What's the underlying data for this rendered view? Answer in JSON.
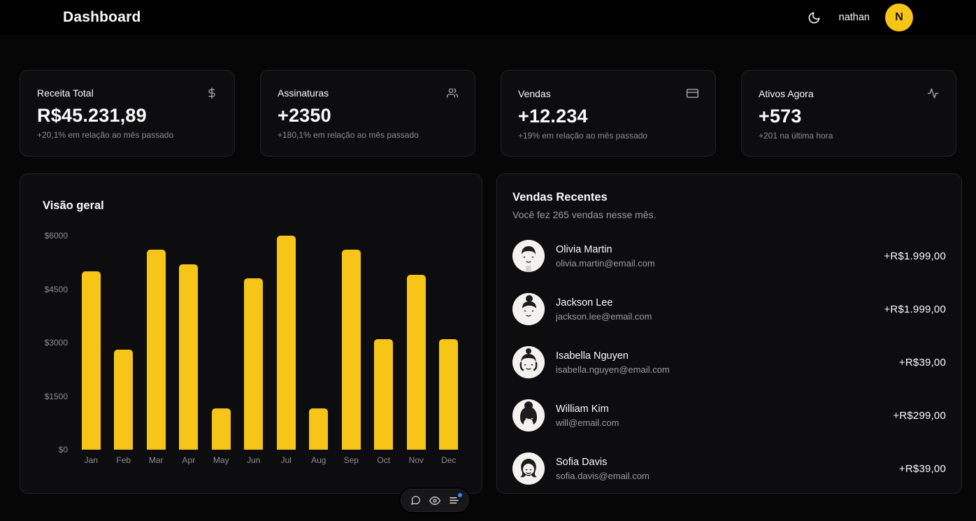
{
  "header": {
    "title": "Dashboard",
    "user_name": "nathan",
    "avatar_initial": "N",
    "icons": [
      "moon-icon",
      "avatar"
    ]
  },
  "stats": [
    {
      "title": "Receita Total",
      "icon": "dollar-icon",
      "value": "R$45.231,89",
      "note": "+20,1% em relação ao mês passado"
    },
    {
      "title": "Assinaturas",
      "icon": "users-icon",
      "value": "+2350",
      "note": "+180,1% em relação ao mês passado"
    },
    {
      "title": "Vendas",
      "icon": "credit-card-icon",
      "value": "+12.234",
      "note": "+19% em relação ao mês passado"
    },
    {
      "title": "Ativos Agora",
      "icon": "activity-icon",
      "value": "+573",
      "note": "+201 na última hora"
    }
  ],
  "chart_card": {
    "title": "Visão geral"
  },
  "chart_data": {
    "type": "bar",
    "title": "Visão geral",
    "categories": [
      "Jan",
      "Feb",
      "Mar",
      "Apr",
      "May",
      "Jun",
      "Jul",
      "Aug",
      "Sep",
      "Oct",
      "Nov",
      "Dec"
    ],
    "values": [
      5000,
      2800,
      5600,
      5200,
      1150,
      4800,
      6000,
      1150,
      5600,
      3100,
      4900,
      3100
    ],
    "xlabel": "",
    "ylabel": "",
    "ylim": [
      0,
      6000
    ],
    "yticks": [
      "$6000",
      "$4500",
      "$3000",
      "$1500",
      "$0"
    ],
    "bar_color": "#f6c517",
    "grid": false,
    "legend": false
  },
  "sales": {
    "title": "Vendas Recentes",
    "subtitle": "Você fez 265 vendas nesse mês.",
    "items": [
      {
        "name": "Olivia Martin",
        "email": "olivia.martin@email.com",
        "amount": "+R$1.999,00"
      },
      {
        "name": "Jackson Lee",
        "email": "jackson.lee@email.com",
        "amount": "+R$1.999,00"
      },
      {
        "name": "Isabella Nguyen",
        "email": "isabella.nguyen@email.com",
        "amount": "+R$39,00"
      },
      {
        "name": "William Kim",
        "email": "will@email.com",
        "amount": "+R$299,00"
      },
      {
        "name": "Sofia Davis",
        "email": "sofia.davis@email.com",
        "amount": "+R$39,00"
      }
    ]
  },
  "overlay_toolbar": {
    "icons": [
      "comment-icon",
      "eye-icon",
      "sliders-icon"
    ],
    "badge_color": "#3b82f6"
  },
  "colors": {
    "accent": "#f6c517",
    "header_background": "#000000",
    "page_background": "#060607",
    "card_background": "#0d0d0f",
    "card_border": "#232329",
    "muted_text": "#8c8c93"
  }
}
